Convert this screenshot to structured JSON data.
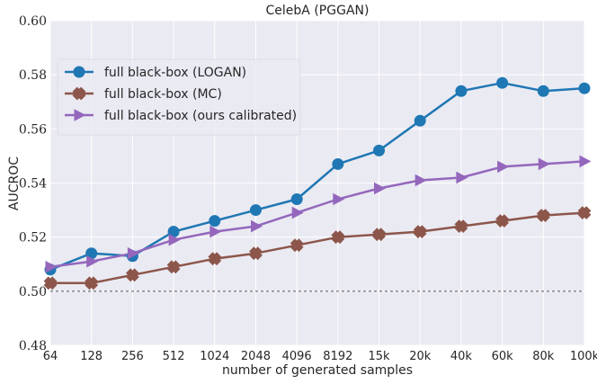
{
  "chart_data": {
    "type": "line",
    "title": "CelebA (PGGAN)",
    "xlabel": "number of generated samples",
    "ylabel": "AUCROC",
    "categories": [
      "64",
      "128",
      "256",
      "512",
      "1024",
      "2048",
      "4096",
      "8192",
      "15k",
      "20k",
      "40k",
      "60k",
      "80k",
      "100k"
    ],
    "ylim": [
      0.48,
      0.6
    ],
    "yticks": [
      "0.48",
      "0.50",
      "0.52",
      "0.54",
      "0.56",
      "0.58",
      "0.60"
    ],
    "grid": true,
    "reference_line": 0.5,
    "legend_position": "upper-left",
    "series": [
      {
        "name": "full black-box (LOGAN)",
        "color": "#1f77b4",
        "marker": "circle",
        "values": [
          0.508,
          0.514,
          0.513,
          0.522,
          0.526,
          0.53,
          0.534,
          0.547,
          0.552,
          0.563,
          0.574,
          0.577,
          0.574,
          0.575
        ]
      },
      {
        "name": "full black-box (MC)",
        "color": "#8c564b",
        "marker": "x",
        "values": [
          0.503,
          0.503,
          0.506,
          0.509,
          0.512,
          0.514,
          0.517,
          0.52,
          0.521,
          0.522,
          0.524,
          0.526,
          0.528,
          0.529
        ]
      },
      {
        "name": "full black-box (ours calibrated)",
        "color": "#9467bd",
        "marker": "triangle-right",
        "values": [
          0.509,
          0.511,
          0.514,
          0.519,
          0.522,
          0.524,
          0.529,
          0.534,
          0.538,
          0.541,
          0.542,
          0.546,
          0.547,
          0.548
        ]
      }
    ]
  }
}
